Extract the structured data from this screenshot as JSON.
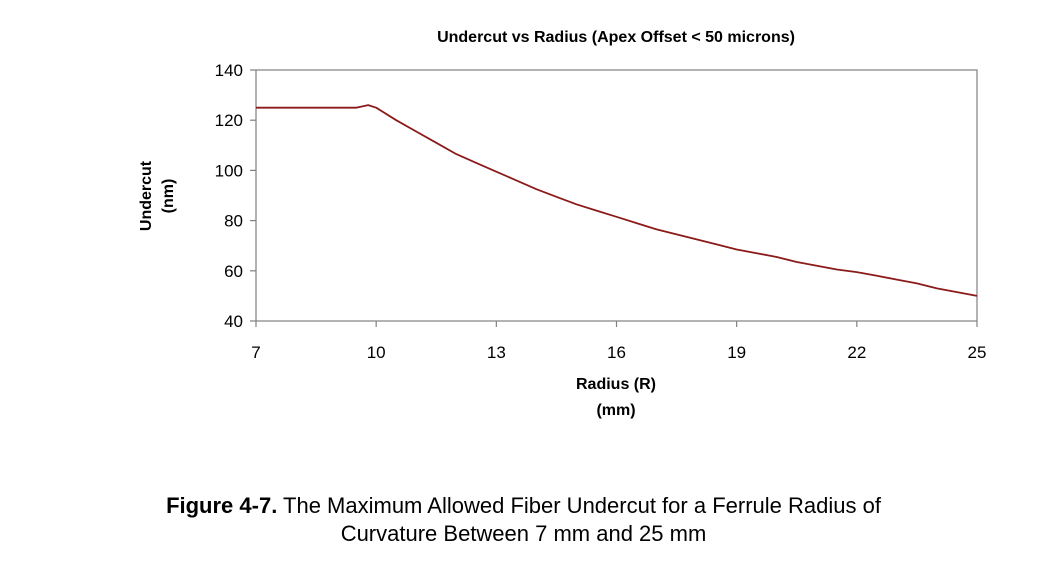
{
  "chart_data": {
    "type": "line",
    "title": "Undercut vs Radius  (Apex Offset < 50 microns)",
    "xlabel": [
      "Radius (R)",
      "(mm)"
    ],
    "ylabel": [
      "Undercut",
      "(nm)"
    ],
    "xlim": [
      7,
      25
    ],
    "ylim": [
      40,
      140
    ],
    "x_ticks": [
      7,
      10,
      13,
      16,
      19,
      22,
      25
    ],
    "y_ticks": [
      40,
      60,
      80,
      100,
      120,
      140
    ],
    "grid": false,
    "line_color": "#8b1a1a",
    "series": [
      {
        "x": [
          7,
          9.5,
          9.8,
          10.0,
          10.5,
          11.0,
          11.5,
          12.0,
          12.5,
          13.0,
          13.5,
          14.0,
          14.5,
          15.0,
          15.5,
          16.0,
          16.5,
          17.0,
          17.5,
          18.0,
          18.5,
          19.0,
          19.5,
          20.0,
          20.5,
          21.0,
          21.5,
          22.0,
          22.5,
          23.0,
          23.5,
          24.0,
          24.5,
          25.0
        ],
        "y": [
          125,
          125,
          126,
          125,
          120,
          115.5,
          111,
          106.5,
          103,
          99.5,
          96,
          92.5,
          89.5,
          86.5,
          84,
          81.5,
          79,
          76.5,
          74.5,
          72.5,
          70.5,
          68.5,
          67,
          65.5,
          63.5,
          62,
          60.5,
          59.5,
          58,
          56.5,
          55,
          53,
          51.5,
          50
        ]
      }
    ]
  },
  "caption": {
    "label": "Figure 4-7.",
    "line1": " The Maximum Allowed Fiber Undercut for a Ferrule Radius of",
    "line2": "Curvature Between 7 mm and 25 mm"
  }
}
